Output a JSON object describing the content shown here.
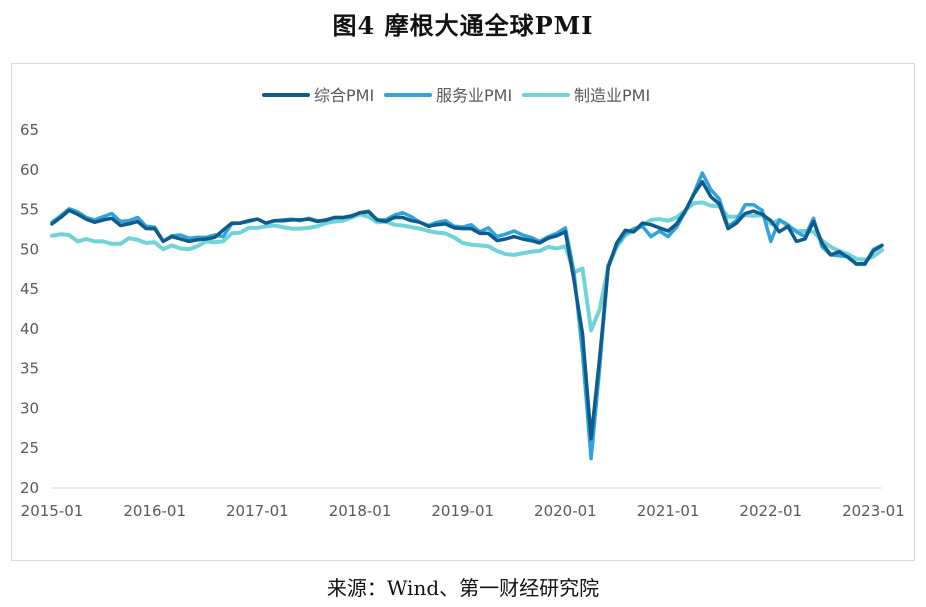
{
  "figure_title": "图4 摩根大通全球PMI",
  "source": "来源：Wind、第一财经研究院",
  "colors": {
    "composite": "#0f5b8c",
    "services": "#2ea3dc",
    "manufacturing": "#6fd3d8",
    "axis_text": "#595959",
    "axis_line": "#d9d9d9"
  },
  "chart_data": {
    "type": "line",
    "title": "",
    "xlabel": "",
    "ylabel": "",
    "ylim": [
      20,
      65
    ],
    "yticks": [
      20,
      25,
      30,
      35,
      40,
      45,
      50,
      55,
      60,
      65
    ],
    "x_tick_labels": [
      "2015-01",
      "2016-01",
      "2017-01",
      "2018-01",
      "2019-01",
      "2020-01",
      "2021-01",
      "2022-01",
      "2023-01"
    ],
    "grid": false,
    "legend_position": "top-center",
    "x_start": "2015-01",
    "x_end": "2023-02",
    "series": [
      {
        "name": "综合PMI",
        "color_key": "composite",
        "values": [
          53.2,
          54.0,
          54.9,
          54.4,
          53.8,
          53.4,
          53.7,
          53.9,
          53.0,
          53.2,
          53.5,
          52.6,
          52.6,
          51.0,
          51.6,
          51.3,
          51.0,
          51.2,
          51.3,
          51.5,
          52.4,
          53.3,
          53.3,
          53.6,
          53.8,
          53.3,
          53.6,
          53.6,
          53.7,
          53.7,
          53.8,
          53.5,
          53.7,
          54.0,
          54.0,
          54.2,
          54.6,
          54.7,
          53.7,
          53.5,
          54.0,
          54.0,
          53.6,
          53.4,
          52.9,
          53.1,
          53.2,
          52.7,
          52.6,
          52.6,
          52.0,
          52.0,
          51.1,
          51.3,
          51.6,
          51.3,
          51.1,
          50.8,
          51.4,
          51.7,
          52.2,
          46.1,
          39.4,
          26.2,
          36.3,
          47.7,
          50.8,
          52.4,
          52.2,
          53.3,
          53.1,
          52.7,
          52.3,
          53.2,
          54.8,
          56.9,
          58.5,
          56.6,
          55.7,
          52.6,
          53.3,
          54.5,
          54.8,
          54.4,
          53.6,
          52.2,
          52.9,
          51.0,
          51.3,
          53.5,
          50.8,
          49.3,
          49.7,
          49.0,
          48.2,
          48.2,
          49.8,
          50.5
        ]
      },
      {
        "name": "服务业PMI",
        "color_key": "services",
        "values": [
          53.4,
          54.2,
          55.1,
          54.7,
          54.0,
          53.7,
          54.1,
          54.5,
          53.5,
          53.6,
          54.0,
          52.9,
          52.8,
          51.0,
          51.7,
          51.8,
          51.4,
          51.5,
          51.5,
          51.8,
          51.6,
          53.2,
          53.3,
          53.5,
          53.8,
          53.3,
          53.6,
          53.7,
          53.8,
          53.6,
          53.9,
          53.6,
          53.6,
          54.0,
          54.0,
          54.1,
          54.6,
          54.8,
          53.7,
          53.7,
          54.3,
          54.6,
          54.1,
          53.4,
          53.0,
          53.4,
          53.6,
          52.9,
          52.8,
          53.1,
          52.2,
          52.7,
          51.6,
          51.9,
          52.3,
          51.8,
          51.5,
          51.0,
          51.6,
          52.0,
          52.7,
          47.1,
          37.0,
          23.7,
          35.0,
          48.0,
          50.5,
          52.0,
          52.6,
          52.9,
          51.6,
          52.3,
          51.6,
          52.8,
          54.7,
          57.0,
          59.6,
          57.5,
          56.3,
          52.9,
          53.6,
          55.6,
          55.6,
          54.9,
          51.0,
          53.7,
          53.1,
          52.2,
          51.6,
          53.9,
          50.3,
          49.3,
          49.2,
          49.1,
          48.1,
          48.1,
          50.0,
          50.5
        ]
      },
      {
        "name": "制造业PMI",
        "color_key": "manufacturing",
        "values": [
          51.7,
          51.9,
          51.8,
          51.0,
          51.3,
          51.0,
          51.0,
          50.7,
          50.7,
          51.4,
          51.2,
          50.8,
          50.9,
          50.0,
          50.5,
          50.1,
          50.0,
          50.4,
          51.0,
          50.9,
          51.0,
          52.0,
          52.1,
          52.7,
          52.7,
          52.9,
          53.0,
          52.8,
          52.6,
          52.6,
          52.7,
          52.9,
          53.3,
          53.5,
          53.6,
          54.0,
          54.4,
          54.1,
          53.4,
          53.5,
          53.1,
          53.0,
          52.8,
          52.6,
          52.3,
          52.1,
          52.0,
          51.5,
          50.8,
          50.6,
          50.5,
          50.4,
          49.8,
          49.4,
          49.3,
          49.5,
          49.7,
          49.8,
          50.3,
          50.1,
          50.4,
          47.1,
          47.6,
          39.8,
          42.4,
          47.8,
          50.3,
          51.8,
          52.3,
          53.0,
          53.7,
          53.8,
          53.6,
          54.0,
          54.9,
          55.8,
          55.9,
          55.5,
          55.4,
          54.1,
          54.1,
          54.3,
          54.2,
          54.3,
          53.2,
          53.7,
          52.9,
          52.3,
          52.3,
          52.2,
          51.1,
          50.3,
          49.8,
          49.4,
          48.8,
          48.7,
          49.1,
          49.9
        ]
      }
    ]
  }
}
